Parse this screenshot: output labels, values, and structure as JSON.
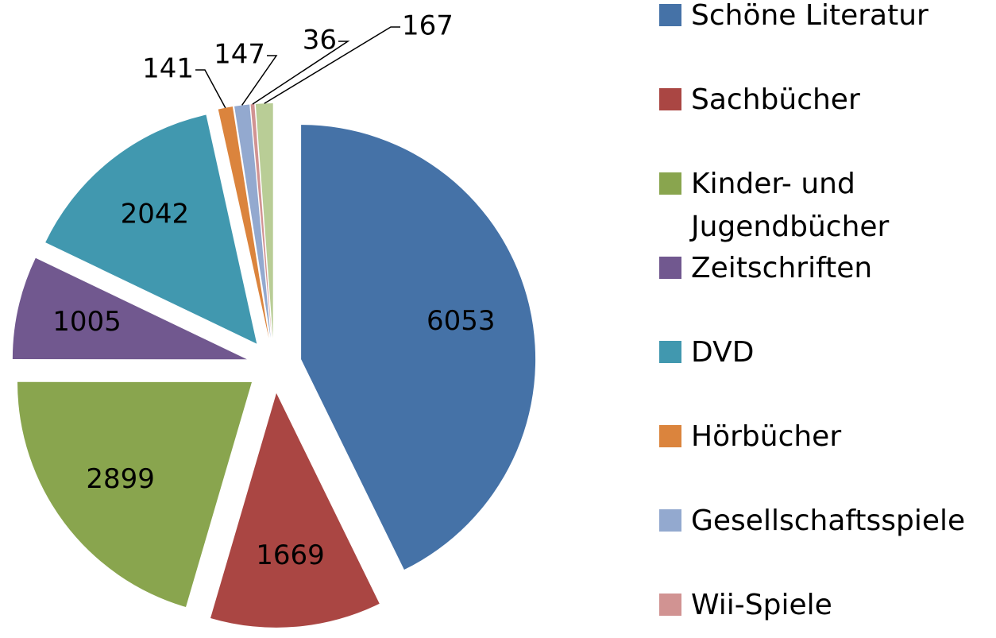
{
  "chart_data": {
    "type": "pie",
    "explode": true,
    "categories": [
      "Schöne Literatur",
      "Sachbücher",
      "Kinder- und Jugendbücher",
      "Zeitschriften",
      "DVD",
      "Hörbücher",
      "Gesellschaftsspiele",
      "Wii-Spiele",
      null
    ],
    "values": [
      6053,
      1669,
      2899,
      1005,
      2042,
      141,
      147,
      36,
      167
    ],
    "colors": [
      "#4572a7",
      "#aa4643",
      "#89a54e",
      "#71588f",
      "#4198af",
      "#db843d",
      "#93a9cf",
      "#d19392",
      "#b9cd96"
    ]
  }
}
